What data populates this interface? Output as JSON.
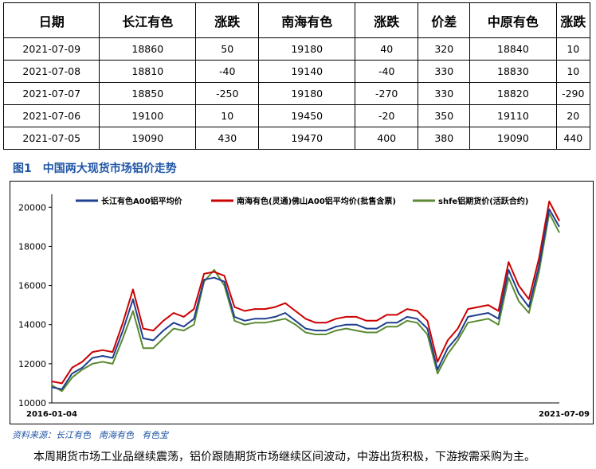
{
  "table": {
    "headers": [
      "日期",
      "长江有色",
      "涨跌",
      "南海有色",
      "涨跌",
      "价差",
      "中原有色",
      "涨跌"
    ],
    "rows": [
      [
        "2021-07-09",
        "18860",
        "50",
        "19180",
        "40",
        "320",
        "18840",
        "10"
      ],
      [
        "2021-07-08",
        "18810",
        "-40",
        "19140",
        "-40",
        "330",
        "18830",
        "10"
      ],
      [
        "2021-07-07",
        "18850",
        "-250",
        "19180",
        "-270",
        "330",
        "18820",
        "-290"
      ],
      [
        "2021-07-06",
        "19100",
        "10",
        "19450",
        "-20",
        "350",
        "19110",
        "20"
      ],
      [
        "2021-07-05",
        "19090",
        "430",
        "19470",
        "400",
        "380",
        "19090",
        "440"
      ]
    ]
  },
  "figure": {
    "number": "图1",
    "title": "中国两大现货市场铝价走势"
  },
  "chart_data": {
    "type": "line",
    "title": "中国两大现货市场铝价走势",
    "x_tick_labels": [
      "2016-01-04",
      "2021-07-09"
    ],
    "ylim": [
      10000,
      20500
    ],
    "y_ticks": [
      10000,
      12000,
      14000,
      16000,
      18000,
      20000
    ],
    "legend_position": "top",
    "x": [
      0,
      0.02,
      0.04,
      0.06,
      0.08,
      0.1,
      0.12,
      0.14,
      0.16,
      0.18,
      0.2,
      0.22,
      0.24,
      0.26,
      0.28,
      0.3,
      0.32,
      0.34,
      0.36,
      0.38,
      0.4,
      0.42,
      0.44,
      0.46,
      0.48,
      0.5,
      0.52,
      0.54,
      0.56,
      0.58,
      0.6,
      0.62,
      0.64,
      0.66,
      0.68,
      0.7,
      0.72,
      0.74,
      0.76,
      0.78,
      0.8,
      0.82,
      0.84,
      0.86,
      0.88,
      0.9,
      0.92,
      0.94,
      0.96,
      0.98,
      1.0
    ],
    "series": [
      {
        "name": "长江有色A00铝平均价",
        "color": "#1f3f8f",
        "values": [
          10800,
          10700,
          11500,
          11800,
          12300,
          12400,
          12300,
          13700,
          15300,
          13300,
          13200,
          13700,
          14100,
          13900,
          14300,
          16300,
          16400,
          16200,
          14400,
          14200,
          14300,
          14300,
          14400,
          14600,
          14200,
          13800,
          13700,
          13700,
          13900,
          14000,
          14000,
          13800,
          13800,
          14100,
          14100,
          14400,
          14300,
          13800,
          11700,
          12800,
          13400,
          14400,
          14500,
          14600,
          14300,
          16800,
          15600,
          14900,
          17000,
          19900,
          19000
        ]
      },
      {
        "name": "南海有色(灵通)佛山A00铝平均价(批售含票)",
        "color": "#cc0000",
        "values": [
          11100,
          11000,
          11800,
          12100,
          12600,
          12700,
          12600,
          14100,
          15800,
          13800,
          13700,
          14200,
          14600,
          14400,
          14800,
          16600,
          16700,
          16500,
          14900,
          14700,
          14800,
          14800,
          14900,
          15100,
          14700,
          14300,
          14100,
          14100,
          14300,
          14400,
          14400,
          14200,
          14200,
          14500,
          14500,
          14800,
          14700,
          14200,
          12100,
          13200,
          13800,
          14800,
          14900,
          15000,
          14700,
          17200,
          16000,
          15300,
          17400,
          20300,
          19300
        ]
      },
      {
        "name": "shfe铝期货价(活跃合约)",
        "color": "#5a8a32",
        "values": [
          10900,
          10600,
          11300,
          11700,
          12000,
          12100,
          12000,
          13300,
          14700,
          12800,
          12800,
          13300,
          13800,
          13700,
          14000,
          16200,
          16800,
          16000,
          14200,
          14000,
          14100,
          14100,
          14200,
          14300,
          14000,
          13600,
          13500,
          13500,
          13700,
          13800,
          13700,
          13600,
          13600,
          13900,
          13900,
          14200,
          14100,
          13500,
          11500,
          12500,
          13200,
          14100,
          14200,
          14300,
          14000,
          16400,
          15200,
          14600,
          16700,
          19700,
          18700
        ]
      }
    ]
  },
  "source": {
    "label": "资料来源：",
    "items": [
      "长江有色",
      "南海有色",
      "有色宝"
    ]
  },
  "caption": "本周期货市场工业品继续震荡，铝价跟随期货市场继续区间波动，中游出货积极，下游按需采购为主。"
}
